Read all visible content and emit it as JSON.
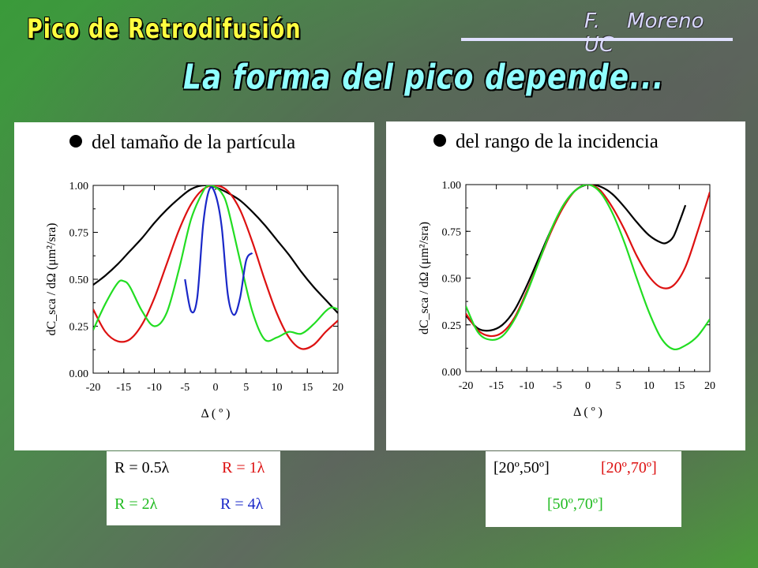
{
  "header": {
    "title": "Pico de Retrodifusión",
    "author": "F. Moreno    UC",
    "subtitle": "La forma del pico depende..."
  },
  "colors": {
    "title": "#ffff40",
    "subtitle": "#90ffff",
    "black": "#000000",
    "red": "#dd1111",
    "green": "#22dd22",
    "blue": "#1a28c8"
  },
  "chart_data": [
    {
      "type": "line",
      "heading": "del tamaño de la partícula",
      "xlabel": "Δ ( º )",
      "ylabel": "dC_sca / dΩ  (μm²/sra)",
      "xlim": [
        -20,
        20
      ],
      "ylim": [
        0,
        1
      ],
      "xticks": [
        "-20",
        "-15",
        "-10",
        "-5",
        "0",
        "5",
        "10",
        "15",
        "20"
      ],
      "yticks": [
        "0.00",
        "0.25",
        "0.50",
        "0.75",
        "1.00"
      ],
      "series": [
        {
          "name": "R = 0.5λ",
          "color": "#000000",
          "x": [
            -20,
            -18,
            -16,
            -14,
            -12,
            -10,
            -8,
            -6,
            -4,
            -2,
            0,
            2,
            4,
            6,
            8,
            10,
            12,
            14,
            16,
            18,
            20
          ],
          "y": [
            0.47,
            0.52,
            0.58,
            0.65,
            0.72,
            0.8,
            0.87,
            0.93,
            0.98,
            1.0,
            0.99,
            0.96,
            0.92,
            0.86,
            0.79,
            0.71,
            0.63,
            0.54,
            0.46,
            0.39,
            0.32
          ]
        },
        {
          "name": "R = 1λ",
          "color": "#dd1111",
          "x": [
            -20,
            -18,
            -16,
            -14,
            -12,
            -10,
            -8,
            -6,
            -4,
            -2,
            0,
            2,
            4,
            6,
            8,
            10,
            12,
            14,
            16,
            18,
            20
          ],
          "y": [
            0.34,
            0.22,
            0.17,
            0.18,
            0.26,
            0.4,
            0.58,
            0.76,
            0.9,
            0.98,
            1.0,
            0.97,
            0.87,
            0.7,
            0.5,
            0.32,
            0.19,
            0.13,
            0.15,
            0.22,
            0.28
          ]
        },
        {
          "name": "R = 2λ",
          "color": "#22dd22",
          "x": [
            -20,
            -18,
            -16,
            -15,
            -14,
            -12,
            -10,
            -8,
            -6,
            -4,
            -2,
            -1,
            0,
            1,
            2,
            4,
            6,
            8,
            10,
            12,
            14,
            16,
            18,
            19,
            20
          ],
          "y": [
            0.23,
            0.37,
            0.48,
            0.49,
            0.46,
            0.33,
            0.25,
            0.32,
            0.55,
            0.82,
            0.97,
            1.0,
            0.99,
            0.96,
            0.88,
            0.6,
            0.33,
            0.18,
            0.19,
            0.22,
            0.21,
            0.26,
            0.33,
            0.35,
            0.34
          ]
        },
        {
          "name": "R = 4λ",
          "color": "#1a28c8",
          "x": [
            -5,
            -4,
            -3,
            -2,
            -1,
            0,
            1,
            2,
            3,
            4,
            5,
            6
          ],
          "y": [
            0.5,
            0.33,
            0.4,
            0.8,
            0.98,
            0.95,
            0.78,
            0.42,
            0.31,
            0.4,
            0.6,
            0.64
          ]
        }
      ]
    },
    {
      "type": "line",
      "heading": "del rango de la incidencia",
      "xlabel": "Δ ( º )",
      "ylabel": "dC_sca / dΩ  (μm²/sra)",
      "xlim": [
        -20,
        20
      ],
      "ylim": [
        0,
        1
      ],
      "xticks": [
        "-20",
        "-15",
        "-10",
        "-5",
        "0",
        "5",
        "10",
        "15",
        "20"
      ],
      "yticks": [
        "0.00",
        "0.25",
        "0.50",
        "0.75",
        "1.00"
      ],
      "series": [
        {
          "name": "[20º,50º]",
          "color": "#000000",
          "x": [
            -20,
            -18,
            -16,
            -14,
            -12,
            -10,
            -8,
            -6,
            -4,
            -2,
            0,
            2,
            4,
            6,
            8,
            10,
            12,
            13,
            14,
            15,
            16
          ],
          "y": [
            0.3,
            0.23,
            0.22,
            0.25,
            0.33,
            0.46,
            0.61,
            0.76,
            0.89,
            0.97,
            1.0,
            0.99,
            0.95,
            0.88,
            0.8,
            0.73,
            0.69,
            0.69,
            0.72,
            0.8,
            0.89
          ]
        },
        {
          "name": "[20º,70º]",
          "color": "#dd1111",
          "x": [
            -20,
            -18,
            -16,
            -14,
            -12,
            -10,
            -8,
            -6,
            -4,
            -2,
            0,
            2,
            4,
            6,
            8,
            10,
            12,
            14,
            16,
            18,
            20
          ],
          "y": [
            0.31,
            0.22,
            0.19,
            0.21,
            0.29,
            0.43,
            0.59,
            0.75,
            0.88,
            0.97,
            1.0,
            0.97,
            0.88,
            0.76,
            0.62,
            0.51,
            0.45,
            0.46,
            0.56,
            0.75,
            0.96
          ]
        },
        {
          "name": "[50º,70º]",
          "color": "#22dd22",
          "x": [
            -20,
            -18,
            -16,
            -14,
            -12,
            -10,
            -8,
            -6,
            -4,
            -2,
            0,
            2,
            4,
            6,
            8,
            10,
            12,
            14,
            16,
            18,
            20
          ],
          "y": [
            0.35,
            0.21,
            0.17,
            0.19,
            0.28,
            0.42,
            0.59,
            0.76,
            0.89,
            0.97,
            1.0,
            0.96,
            0.85,
            0.69,
            0.5,
            0.32,
            0.18,
            0.12,
            0.14,
            0.19,
            0.28
          ]
        }
      ]
    }
  ],
  "legend_left": {
    "r05": "R = 0.5λ",
    "r1": "R = 1λ",
    "r2": "R = 2λ",
    "r4": "R = 4λ"
  },
  "legend_right": {
    "a": "[20º,50º]",
    "b": "[20º,70º]",
    "c": "[50º,70º]"
  }
}
